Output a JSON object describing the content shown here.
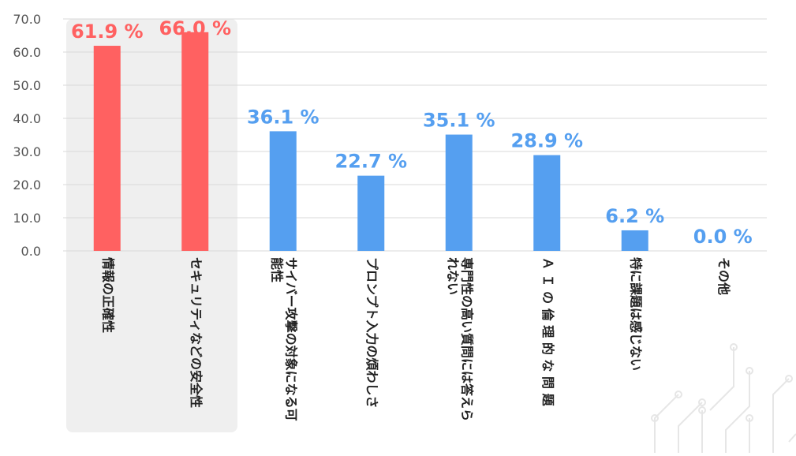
{
  "chart_data": {
    "type": "bar",
    "categories": [
      "情報の正確性",
      "セキュリティなどの安全性",
      "サイバー攻撃の対象になる可能性",
      "プロンプト入力の煩わしさ",
      "専門性の高い質問には答えられない",
      "ＡＩの倫理的な問題",
      "特に課題は感じない",
      "その他"
    ],
    "category_label_lines": [
      [
        "情報の正確性"
      ],
      [
        "セキュリティなどの安全性"
      ],
      [
        "サイバー攻撃の対象になる可",
        "能性"
      ],
      [
        "プロンプト入力の煩わしさ"
      ],
      [
        "専門性の高い質問には答えら",
        "れない"
      ],
      [
        "Ａ Ｉ の 倫 理 的 な 問 題"
      ],
      [
        "特に課題は感じない"
      ],
      [
        "その他"
      ]
    ],
    "values": [
      61.9,
      66.0,
      36.1,
      22.7,
      35.1,
      28.9,
      6.2,
      0.0
    ],
    "value_labels": [
      "61.9 %",
      "66.0 %",
      "36.1 %",
      "22.7 %",
      "35.1 %",
      "28.9 %",
      "6.2 %",
      "0.0 %"
    ],
    "highlighted": [
      true,
      true,
      false,
      false,
      false,
      false,
      false,
      false
    ],
    "yticks": [
      "0.0",
      "10.0",
      "20.0",
      "30.0",
      "40.0",
      "50.0",
      "60.0",
      "70.0"
    ],
    "ylim": [
      0,
      70
    ],
    "grid": true,
    "title": "",
    "xlabel": "",
    "ylabel": ""
  },
  "colors": {
    "highlight_bar": "#ff6161",
    "normal_bar": "#559ff0",
    "highlight_label": "#ff6161",
    "normal_label": "#559ff0",
    "highlight_background": "#efefef",
    "gridline": "#d9d9d9",
    "decor": "#e6e6e6"
  }
}
